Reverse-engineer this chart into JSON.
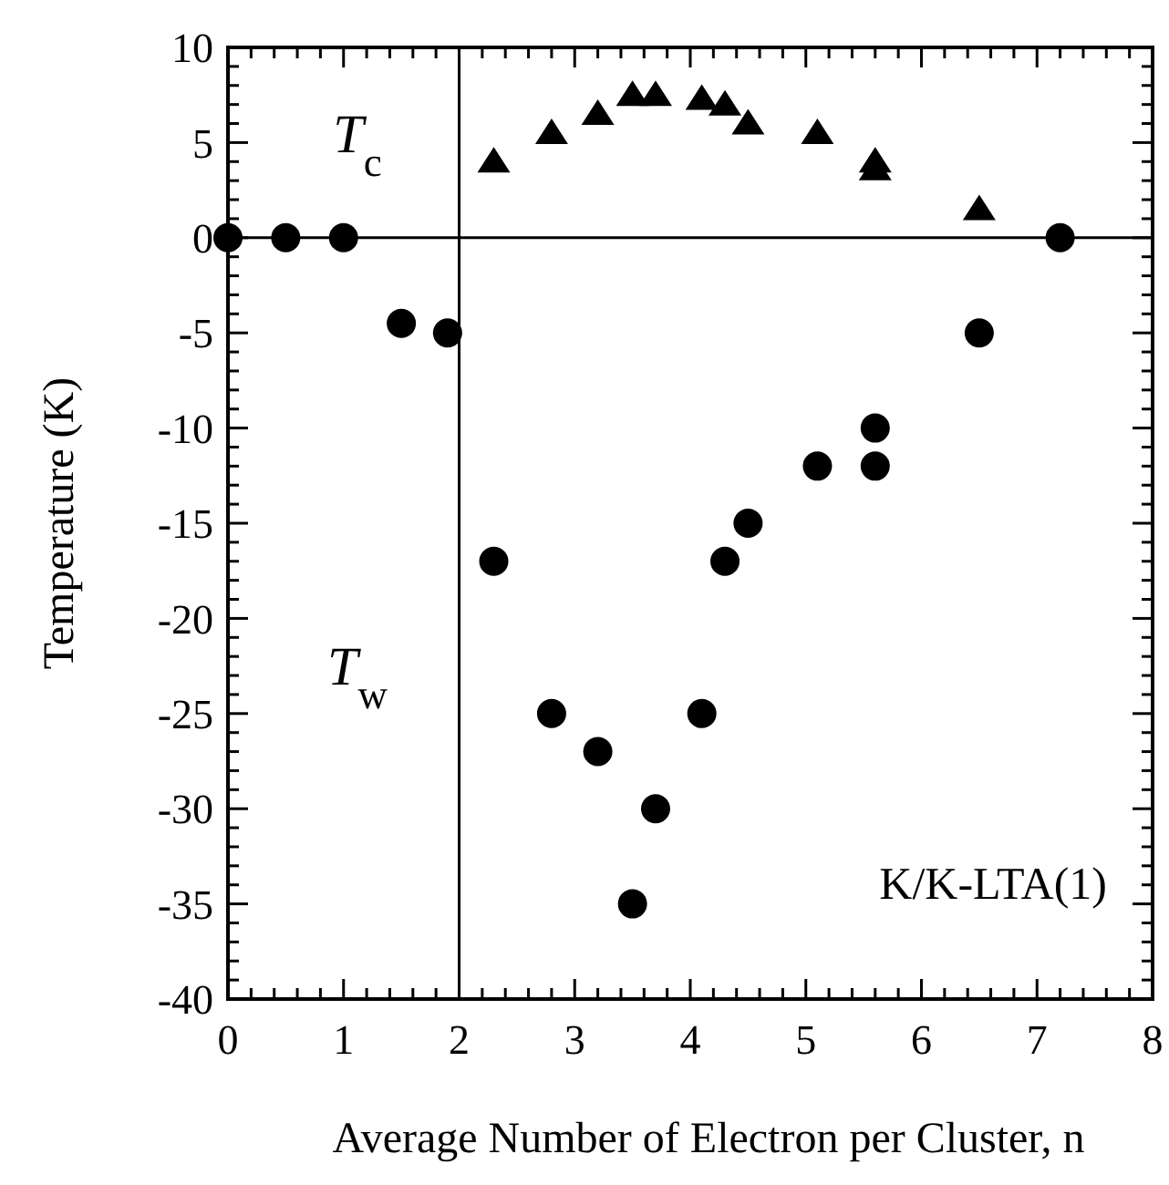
{
  "chart_data": {
    "type": "scatter",
    "xlabel": "Average Number of Electron per Cluster, n",
    "ylabel": "Temperature (K)",
    "xlim": [
      0,
      8
    ],
    "ylim": [
      -40,
      10
    ],
    "xticks": [
      0,
      {
        "value": 0.2,
        "label": null
      },
      {
        "value": 0.4,
        "label": null
      },
      {
        "value": 0.6,
        "label": null
      },
      {
        "value": 0.8,
        "label": null
      },
      1,
      {
        "value": 1.2,
        "label": null
      },
      {
        "value": 1.4,
        "label": null
      },
      {
        "value": 1.6,
        "label": null
      },
      {
        "value": 1.8,
        "label": null
      },
      2,
      {
        "value": 2.2,
        "label": null
      },
      {
        "value": 2.4,
        "label": null
      },
      {
        "value": 2.6,
        "label": null
      },
      {
        "value": 2.8,
        "label": null
      },
      3,
      {
        "value": 3.2,
        "label": null
      },
      {
        "value": 3.4,
        "label": null
      },
      {
        "value": 3.6,
        "label": null
      },
      {
        "value": 3.8,
        "label": null
      },
      4,
      {
        "value": 4.2,
        "label": null
      },
      {
        "value": 4.4,
        "label": null
      },
      {
        "value": 4.6,
        "label": null
      },
      {
        "value": 4.8,
        "label": null
      },
      5,
      {
        "value": 5.2,
        "label": null
      },
      {
        "value": 5.4,
        "label": null
      },
      {
        "value": 5.6,
        "label": null
      },
      {
        "value": 5.8,
        "label": null
      },
      6,
      {
        "value": 6.2,
        "label": null
      },
      {
        "value": 6.4,
        "label": null
      },
      {
        "value": 6.6,
        "label": null
      },
      {
        "value": 6.8,
        "label": null
      },
      7,
      {
        "value": 7.2,
        "label": null
      },
      {
        "value": 7.4,
        "label": null
      },
      {
        "value": 7.6,
        "label": null
      },
      {
        "value": 7.8,
        "label": null
      },
      8
    ],
    "yticks": [
      -40,
      {
        "value": -39,
        "label": null
      },
      {
        "value": -38,
        "label": null
      },
      {
        "value": -37,
        "label": null
      },
      {
        "value": -36,
        "label": null
      },
      -35,
      {
        "value": -34,
        "label": null
      },
      {
        "value": -33,
        "label": null
      },
      {
        "value": -32,
        "label": null
      },
      {
        "value": -31,
        "label": null
      },
      -30,
      {
        "value": -29,
        "label": null
      },
      {
        "value": -28,
        "label": null
      },
      {
        "value": -27,
        "label": null
      },
      {
        "value": -26,
        "label": null
      },
      -25,
      {
        "value": -24,
        "label": null
      },
      {
        "value": -23,
        "label": null
      },
      {
        "value": -22,
        "label": null
      },
      {
        "value": -21,
        "label": null
      },
      -20,
      {
        "value": -19,
        "label": null
      },
      {
        "value": -18,
        "label": null
      },
      {
        "value": -17,
        "label": null
      },
      {
        "value": -16,
        "label": null
      },
      -15,
      {
        "value": -14,
        "label": null
      },
      {
        "value": -13,
        "label": null
      },
      {
        "value": -12,
        "label": null
      },
      {
        "value": -11,
        "label": null
      },
      -10,
      {
        "value": -9,
        "label": null
      },
      {
        "value": -8,
        "label": null
      },
      {
        "value": -7,
        "label": null
      },
      {
        "value": -6,
        "label": null
      },
      -5,
      {
        "value": -4,
        "label": null
      },
      {
        "value": -3,
        "label": null
      },
      {
        "value": -2,
        "label": null
      },
      {
        "value": -1,
        "label": null
      },
      0,
      {
        "value": 1,
        "label": null
      },
      {
        "value": 2,
        "label": null
      },
      {
        "value": 3,
        "label": null
      },
      {
        "value": 4,
        "label": null
      },
      5,
      {
        "value": 6,
        "label": null
      },
      {
        "value": 7,
        "label": null
      },
      {
        "value": 8,
        "label": null
      },
      {
        "value": 9,
        "label": null
      },
      10
    ],
    "grid": false,
    "ref_lines": [
      {
        "axis": "y",
        "value": 0,
        "label": null
      },
      {
        "axis": "x",
        "value": 2,
        "label": null
      }
    ],
    "annotations": [
      "K/K-LTA(1)"
    ],
    "series": [
      {
        "name": "T$_{c}$",
        "color": "#000000",
        "marker": "triangle",
        "x": [
          2.3,
          2.8,
          3.2,
          3.5,
          3.7,
          4.1,
          4.3,
          4.5,
          5.1,
          5.6,
          5.6,
          6.5
        ],
        "values": [
          4,
          5.5,
          6.5,
          7.5,
          7.5,
          7.3,
          7,
          6,
          5.5,
          4,
          3.6,
          1.5
        ]
      },
      {
        "name": "T$_{w}$",
        "color": "#000000",
        "marker": "circle",
        "x": [
          0,
          0.5,
          1,
          1.5,
          1.9,
          2.3,
          2.8,
          3.2,
          3.5,
          3.7,
          4.1,
          4.3,
          4.5,
          5.1,
          5.6,
          5.6,
          6.5,
          7.2
        ],
        "values": [
          0,
          0,
          0,
          -4.5,
          -5,
          -17,
          -25,
          -27,
          -35,
          -30,
          -25,
          -17,
          -15,
          -12,
          -10,
          -12,
          -5,
          0
        ]
      }
    ]
  }
}
